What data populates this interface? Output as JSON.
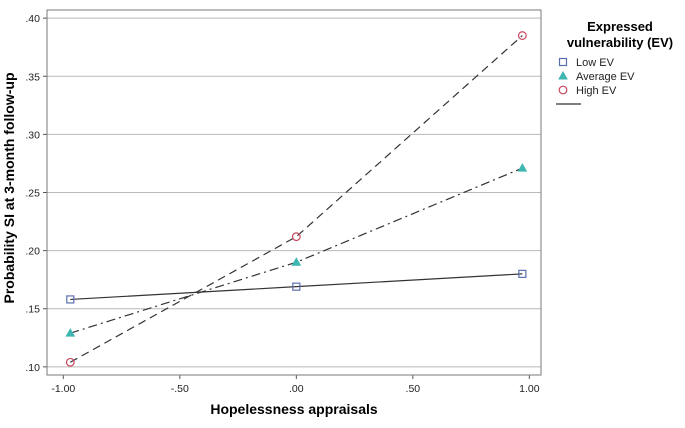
{
  "chart_data": {
    "type": "line",
    "xlabel": "Hopelessness appraisals",
    "ylabel": "Probability SI at 3-month follow-up",
    "xlim": [
      -1.07,
      1.05
    ],
    "ylim": [
      0.093,
      0.407
    ],
    "x_ticks": [
      -1.0,
      -0.5,
      0.0,
      0.5,
      1.0
    ],
    "x_tick_labels": [
      "-1.00",
      "-.50",
      ".00",
      ".50",
      "1.00"
    ],
    "y_ticks": [
      0.1,
      0.15,
      0.2,
      0.25,
      0.3,
      0.35,
      0.4
    ],
    "y_tick_labels": [
      ".10",
      ".15",
      ".20",
      ".25",
      ".30",
      ".35",
      ".40"
    ],
    "grid": "horizontal",
    "legend": {
      "title": "Expressed vulnerability (EV)",
      "title_lines": [
        "Expressed",
        "vulnerability (EV)"
      ],
      "placement": "right"
    },
    "x": [
      -0.97,
      0.0,
      0.97
    ],
    "series": [
      {
        "name": "Low EV",
        "values": [
          0.158,
          0.169,
          0.18
        ],
        "marker": "square",
        "color": "#5b6fb0",
        "line_style": "solid"
      },
      {
        "name": "Average EV",
        "values": [
          0.129,
          0.19,
          0.271
        ],
        "marker": "triangle",
        "color": "#3fb6b0",
        "line_style": "dash-dot"
      },
      {
        "name": "High EV",
        "values": [
          0.104,
          0.212,
          0.385
        ],
        "marker": "circle",
        "color": "#c8465a",
        "line_style": "dashed"
      }
    ]
  }
}
